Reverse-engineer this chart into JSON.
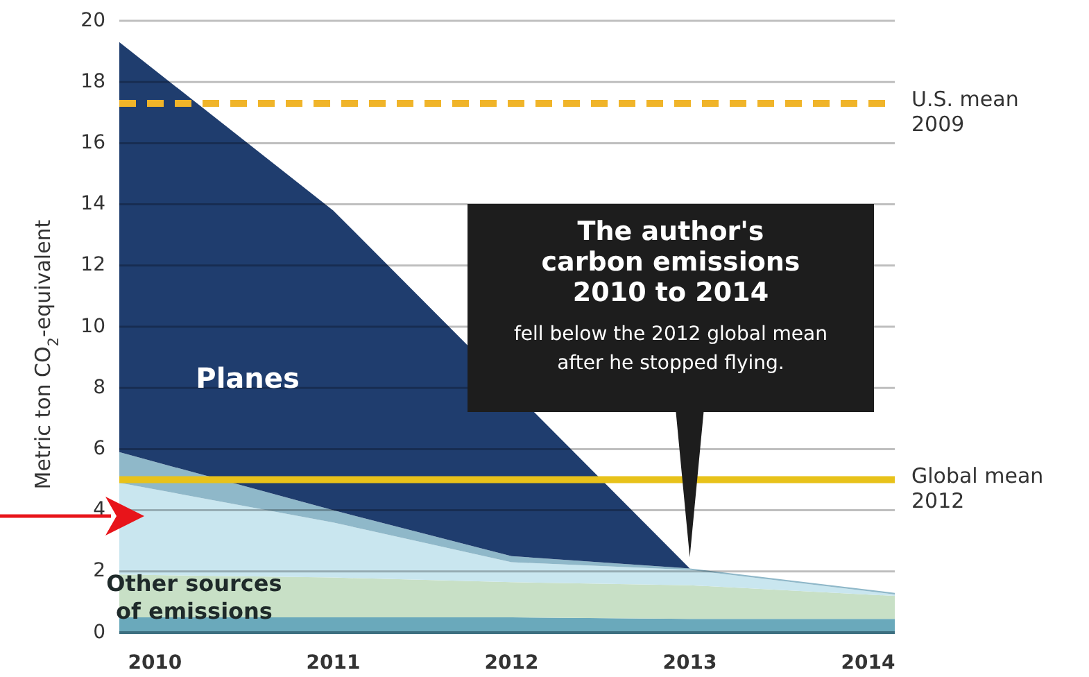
{
  "chart_data": {
    "type": "area",
    "stacked": true,
    "ylabel": "Metric ton CO$_{2}$-equivalent",
    "x": [
      2009.8,
      2011,
      2012,
      2013,
      2014.15
    ],
    "xlim": [
      2009.8,
      2014.15
    ],
    "xticks": [
      2010,
      2011,
      2012,
      2013,
      2014
    ],
    "ylim": [
      0,
      20
    ],
    "yticks": [
      0,
      2,
      4,
      6,
      8,
      10,
      12,
      14,
      16,
      18,
      20
    ],
    "grid": "y",
    "series": [
      {
        "color": "#6aa9bb",
        "values": [
          0.5,
          0.5,
          0.5,
          0.45,
          0.45
        ]
      },
      {
        "name": "Other sources\nof emissions",
        "color": "#c8e0c6",
        "values": [
          1.4,
          1.3,
          1.15,
          1.1,
          0.75
        ]
      },
      {
        "color": "#c9e6ef",
        "values": [
          3.0,
          1.8,
          0.65,
          0.5,
          0.05
        ]
      },
      {
        "color": "#8fb8c9",
        "values": [
          1.0,
          0.4,
          0.2,
          0.05,
          0.05
        ]
      },
      {
        "name": "Planes",
        "color": "#1f3d6e",
        "values": [
          13.4,
          9.8,
          null,
          0,
          0
        ]
      }
    ],
    "ref_lines": [
      {
        "axis": "y",
        "value": 17.3,
        "label": "U.S. mean\n2009",
        "color": "#f0b429",
        "line_style": "dashed"
      },
      {
        "axis": "y",
        "value": 5,
        "label": "Global mean\n2012",
        "color": "#e8c21a",
        "line_style": "solid"
      }
    ],
    "annotations": [
      "The author's\ncarbon emissions\n2010 to 2014",
      "fell below the 2012 global mean\nafter he stopped flying."
    ]
  }
}
